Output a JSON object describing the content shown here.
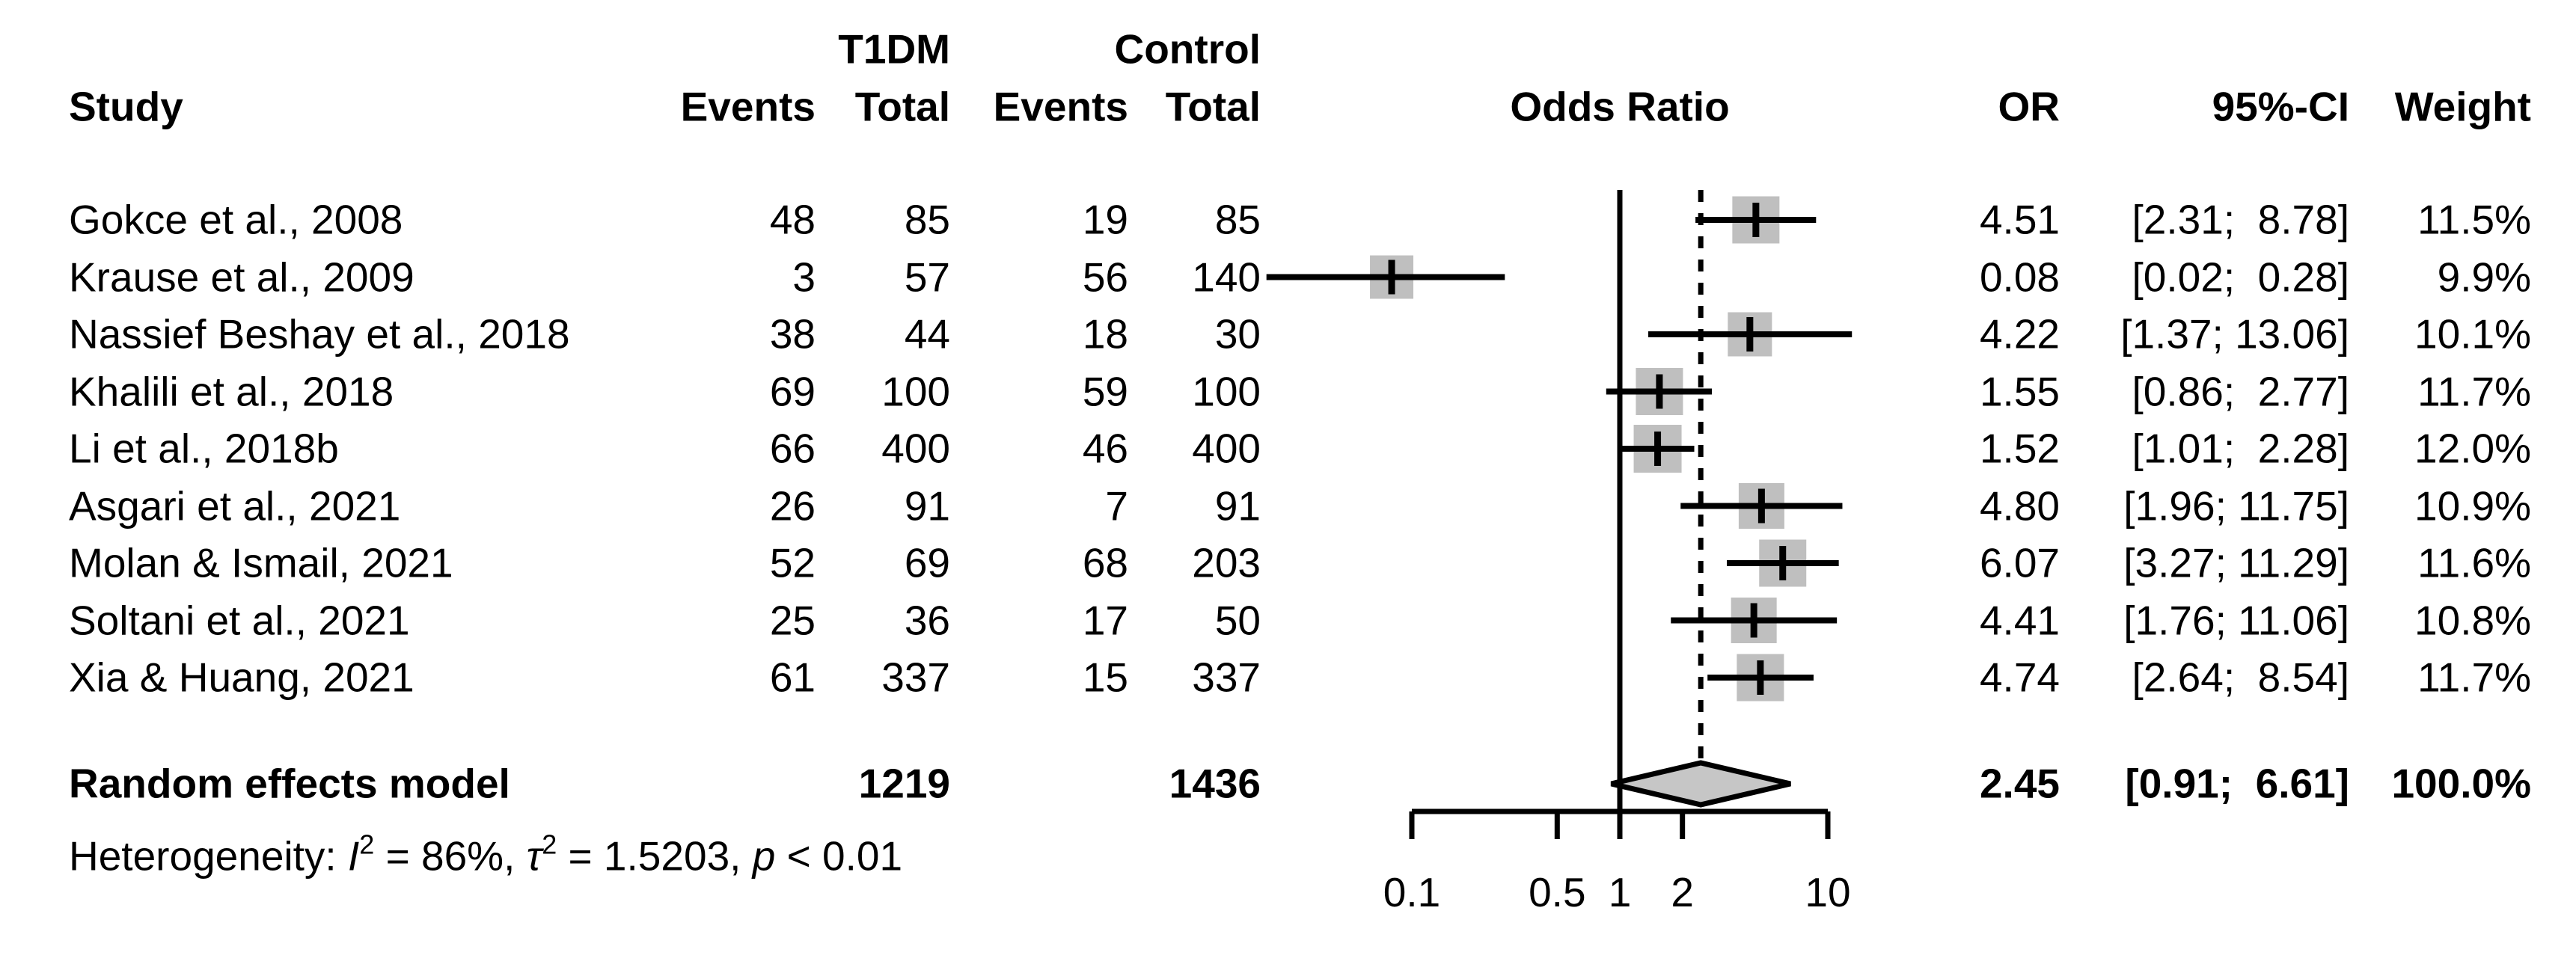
{
  "header": {
    "group_t1dm": "T1DM",
    "group_control": "Control",
    "study": "Study",
    "events1": "Events",
    "total1": "Total",
    "events2": "Events",
    "total2": "Total",
    "plot_title": "Odds Ratio",
    "or": "OR",
    "ci": "95%-CI",
    "weight": "Weight"
  },
  "rows": [
    {
      "study": "Gokce et al., 2008",
      "e1": "48",
      "t1": "85",
      "e2": "19",
      "t2": "85",
      "or": "4.51",
      "ci": "[2.31;  8.78]",
      "weight": "11.5%"
    },
    {
      "study": "Krause et al., 2009",
      "e1": "3",
      "t1": "57",
      "e2": "56",
      "t2": "140",
      "or": "0.08",
      "ci": "[0.02;  0.28]",
      "weight": "9.9%"
    },
    {
      "study": "Nassief Beshay et al., 2018",
      "e1": "38",
      "t1": "44",
      "e2": "18",
      "t2": "30",
      "or": "4.22",
      "ci": "[1.37; 13.06]",
      "weight": "10.1%"
    },
    {
      "study": "Khalili et al., 2018",
      "e1": "69",
      "t1": "100",
      "e2": "59",
      "t2": "100",
      "or": "1.55",
      "ci": "[0.86;  2.77]",
      "weight": "11.7%"
    },
    {
      "study": "Li et al., 2018b",
      "e1": "66",
      "t1": "400",
      "e2": "46",
      "t2": "400",
      "or": "1.52",
      "ci": "[1.01;  2.28]",
      "weight": "12.0%"
    },
    {
      "study": "Asgari et al., 2021",
      "e1": "26",
      "t1": "91",
      "e2": "7",
      "t2": "91",
      "or": "4.80",
      "ci": "[1.96; 11.75]",
      "weight": "10.9%"
    },
    {
      "study": "Molan & Ismail, 2021",
      "e1": "52",
      "t1": "69",
      "e2": "68",
      "t2": "203",
      "or": "6.07",
      "ci": "[3.27; 11.29]",
      "weight": "11.6%"
    },
    {
      "study": "Soltani et al., 2021",
      "e1": "25",
      "t1": "36",
      "e2": "17",
      "t2": "50",
      "or": "4.41",
      "ci": "[1.76; 11.06]",
      "weight": "10.8%"
    },
    {
      "study": "Xia & Huang, 2021",
      "e1": "61",
      "t1": "337",
      "e2": "15",
      "t2": "337",
      "or": "4.74",
      "ci": "[2.64;  8.54]",
      "weight": "11.7%"
    }
  ],
  "summary": {
    "label": "Random effects model",
    "t1": "1219",
    "t2": "1436",
    "or": "2.45",
    "ci": "[0.91;  6.61]",
    "weight": "100.0%"
  },
  "heterogeneity": {
    "segments": [
      {
        "t": "Heterogeneity: "
      },
      {
        "t": "I",
        "style": "it"
      },
      {
        "t": "2",
        "style": "sup"
      },
      {
        "t": " = 86%, "
      },
      {
        "t": "τ",
        "style": "it"
      },
      {
        "t": "2",
        "style": "sup"
      },
      {
        "t": " = 1.5203, "
      },
      {
        "t": "p",
        "style": "it"
      },
      {
        "t": " < 0.01"
      }
    ]
  },
  "chart_data": {
    "type": "forest",
    "effect_measure": "Odds Ratio",
    "x_axis": {
      "scale": "log",
      "range": [
        0.1,
        10
      ],
      "ticks": [
        0.1,
        0.5,
        1,
        2,
        10
      ],
      "tick_labels": [
        "0.1",
        "0.5",
        "1",
        "2",
        "10"
      ],
      "reference_line": 1,
      "pooled_dashed_line": 2.45
    },
    "studies": [
      {
        "name": "Gokce et al., 2008",
        "or": 4.51,
        "ci": [
          2.31,
          8.78
        ],
        "weight": 11.5
      },
      {
        "name": "Krause et al., 2009",
        "or": 0.08,
        "ci": [
          0.02,
          0.28
        ],
        "weight": 9.9
      },
      {
        "name": "Nassief Beshay et al., 2018",
        "or": 4.22,
        "ci": [
          1.37,
          13.06
        ],
        "weight": 10.1
      },
      {
        "name": "Khalili et al., 2018",
        "or": 1.55,
        "ci": [
          0.86,
          2.77
        ],
        "weight": 11.7
      },
      {
        "name": "Li et al., 2018b",
        "or": 1.52,
        "ci": [
          1.01,
          2.28
        ],
        "weight": 12.0
      },
      {
        "name": "Asgari et al., 2021",
        "or": 4.8,
        "ci": [
          1.96,
          11.75
        ],
        "weight": 10.9
      },
      {
        "name": "Molan & Ismail, 2021",
        "or": 6.07,
        "ci": [
          3.27,
          11.29
        ],
        "weight": 11.6
      },
      {
        "name": "Soltani et al., 2021",
        "or": 4.41,
        "ci": [
          1.76,
          11.06
        ],
        "weight": 10.8
      },
      {
        "name": "Xia & Huang, 2021",
        "or": 4.74,
        "ci": [
          2.64,
          8.54
        ],
        "weight": 11.7
      }
    ],
    "pooled": {
      "name": "Random effects model",
      "or": 2.45,
      "ci": [
        0.91,
        6.61
      ],
      "weight": 100.0
    },
    "heterogeneity": {
      "I2": "86%",
      "tau2": "1.5203",
      "p": "< 0.01"
    },
    "marker_color": "#bfbfbf",
    "diamond_color": "#c6c6c6",
    "line_color": "#000000"
  }
}
